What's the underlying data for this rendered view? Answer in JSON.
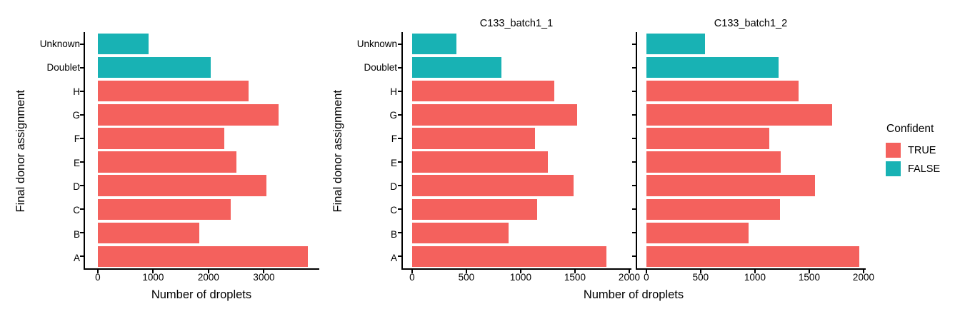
{
  "chart_data": {
    "type": "bar",
    "orientation": "horizontal",
    "xlabel": "Number of droplets",
    "ylabel": "Final donor assignment",
    "categories": [
      "Unknown",
      "Doublet",
      "H",
      "G",
      "F",
      "E",
      "D",
      "C",
      "B",
      "A"
    ],
    "confident": [
      "FALSE",
      "FALSE",
      "TRUE",
      "TRUE",
      "TRUE",
      "TRUE",
      "TRUE",
      "TRUE",
      "TRUE",
      "TRUE"
    ],
    "colors": {
      "TRUE": "#F4615D",
      "FALSE": "#18B2B4"
    },
    "axis_color": "#000000",
    "strip_bg": "#C8C8C8",
    "grid": "off",
    "legend_position": "right",
    "panels": [
      {
        "id": "overall",
        "strip_label": "",
        "xticks": [
          0,
          1000,
          2000,
          3000
        ],
        "xlim": [
          -230,
          4000
        ],
        "values": [
          920,
          2040,
          2720,
          3270,
          2280,
          2510,
          3050,
          2400,
          1830,
          3800
        ]
      },
      {
        "id": "c133-batch1-1",
        "strip_label": "C133_batch1_1",
        "xticks": [
          0,
          500,
          1000,
          1500,
          2000
        ],
        "xlim": [
          -85,
          2020
        ],
        "values": [
          410,
          820,
          1310,
          1520,
          1130,
          1250,
          1490,
          1150,
          890,
          1790
        ]
      },
      {
        "id": "c133-batch1-2",
        "strip_label": "C133_batch1_2",
        "xticks": [
          0,
          500,
          1000,
          1500,
          2000
        ],
        "xlim": [
          -85,
          2020
        ],
        "values": [
          540,
          1220,
          1400,
          1710,
          1130,
          1240,
          1550,
          1230,
          940,
          1960
        ]
      }
    ],
    "legend": {
      "title": "Confident",
      "items": [
        {
          "label": "TRUE"
        },
        {
          "label": "FALSE"
        }
      ]
    }
  }
}
